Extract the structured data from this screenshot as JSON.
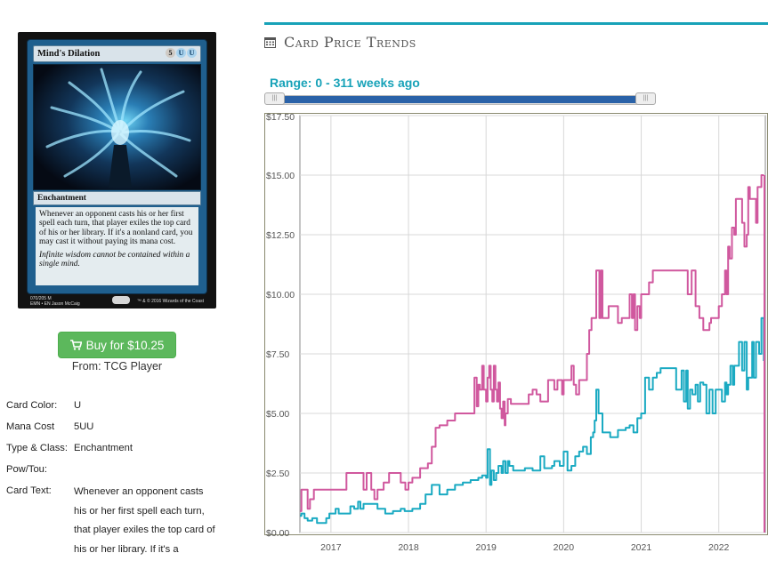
{
  "card": {
    "name": "Mind's Dilation",
    "mana_symbols": [
      "5",
      "U",
      "U"
    ],
    "type_line": "Enchantment",
    "rules_text": "Whenever an opponent casts his or her first spell each turn, that player exiles the top card of his or her library. If it's a nonland card, you may cast it without paying its mana cost.",
    "flavor_text": "Infinite wisdom cannot be contained within a single mind.",
    "collector": "070/205 M",
    "set_line": "EMN • EN",
    "artist": "Jason McCaig",
    "legal": "™ & © 2016 Wizards of the Coast"
  },
  "buy": {
    "label": "Buy for $10.25",
    "icon": "cart-icon",
    "from": "From: TCG Player",
    "color": "#5cb85c"
  },
  "info": {
    "rows": [
      {
        "key": "Card Color:",
        "value": "U"
      },
      {
        "key": "Mana Cost",
        "value": "5UU"
      },
      {
        "key": "Type & Class:",
        "value": "Enchantment"
      },
      {
        "key": "Pow/Tou:",
        "value": ""
      },
      {
        "key": "Card Text:",
        "value": ""
      }
    ],
    "card_text_lines": [
      "Whenever an opponent casts",
      "his or her first spell each turn,",
      "that player exiles the top card of",
      "his or her library. If it's a"
    ]
  },
  "section": {
    "title": "Card Price Trends",
    "icon": "calendar-icon",
    "accent": "#17a2b8"
  },
  "range": {
    "label": "Range: 0 - 311 weeks ago",
    "handle_glyph": "|||"
  },
  "chart_data": {
    "type": "line",
    "title": "",
    "xlabel": "",
    "ylabel": "",
    "ylim": [
      0,
      17.5
    ],
    "xlim": [
      2016.6,
      2022.6
    ],
    "y_ticks": [
      "$0.00",
      "$2.50",
      "$5.00",
      "$7.50",
      "$10.00",
      "$12.50",
      "$15.00",
      "$17.50"
    ],
    "y_tick_values": [
      0,
      2.5,
      5,
      7.5,
      10,
      12.5,
      15,
      17.5
    ],
    "x_ticks": [
      "2017",
      "2018",
      "2019",
      "2020",
      "2021",
      "2022"
    ],
    "x_tick_values": [
      2017,
      2018,
      2019,
      2020,
      2021,
      2022
    ],
    "grid": true,
    "legend": "none",
    "series": [
      {
        "color": "#d0589e",
        "x": [
          2016.6,
          2016.62,
          2016.66,
          2016.7,
          2016.73,
          2016.78,
          2016.85,
          2016.95,
          2017.05,
          2017.15,
          2017.2,
          2017.3,
          2017.38,
          2017.42,
          2017.46,
          2017.52,
          2017.56,
          2017.6,
          2017.68,
          2017.75,
          2017.82,
          2017.9,
          2017.96,
          2018.0,
          2018.05,
          2018.15,
          2018.25,
          2018.3,
          2018.35,
          2018.4,
          2018.5,
          2018.6,
          2018.7,
          2018.8,
          2018.85,
          2018.88,
          2018.9,
          2018.92,
          2018.95,
          2018.97,
          2019.0,
          2019.02,
          2019.04,
          2019.06,
          2019.08,
          2019.1,
          2019.12,
          2019.14,
          2019.16,
          2019.18,
          2019.2,
          2019.22,
          2019.24,
          2019.25,
          2019.28,
          2019.32,
          2019.38,
          2019.45,
          2019.5,
          2019.55,
          2019.6,
          2019.65,
          2019.7,
          2019.75,
          2019.8,
          2019.85,
          2019.88,
          2019.92,
          2019.95,
          2019.98,
          2020.0,
          2020.05,
          2020.1,
          2020.13,
          2020.16,
          2020.2,
          2020.25,
          2020.3,
          2020.33,
          2020.36,
          2020.4,
          2020.42,
          2020.44,
          2020.46,
          2020.48,
          2020.5,
          2020.52,
          2020.55,
          2020.58,
          2020.62,
          2020.66,
          2020.7,
          2020.75,
          2020.8,
          2020.85,
          2020.88,
          2020.9,
          2020.92,
          2020.95,
          2020.98,
          2021.0,
          2021.05,
          2021.1,
          2021.15,
          2021.2,
          2021.25,
          2021.3,
          2021.35,
          2021.4,
          2021.45,
          2021.5,
          2021.55,
          2021.6,
          2021.65,
          2021.7,
          2021.75,
          2021.78,
          2021.8,
          2021.82,
          2021.85,
          2021.88,
          2021.9,
          2021.95,
          2022.0,
          2022.04,
          2022.08,
          2022.1,
          2022.12,
          2022.14,
          2022.17,
          2022.2,
          2022.22,
          2022.26,
          2022.3,
          2022.33,
          2022.36,
          2022.38,
          2022.4,
          2022.45,
          2022.48,
          2022.5,
          2022.52,
          2022.55,
          2022.58
        ],
        "y": [
          0.9,
          1.8,
          1.8,
          1.0,
          1.4,
          1.8,
          1.8,
          1.8,
          1.8,
          1.8,
          2.5,
          2.5,
          2.5,
          1.8,
          2.5,
          1.8,
          1.4,
          1.8,
          2.1,
          2.5,
          2.5,
          2.1,
          1.8,
          2.1,
          2.3,
          2.7,
          2.9,
          3.6,
          4.4,
          4.5,
          4.7,
          5.0,
          5.0,
          5.0,
          6.5,
          5.3,
          6.2,
          6.0,
          7.0,
          6.0,
          5.5,
          6.5,
          7.0,
          6.0,
          5.5,
          7.0,
          6.0,
          5.5,
          6.3,
          5.2,
          4.8,
          5.5,
          4.5,
          5.0,
          5.6,
          5.4,
          5.4,
          5.4,
          5.4,
          5.8,
          6.0,
          5.8,
          5.5,
          5.5,
          6.4,
          6.4,
          6.0,
          6.4,
          6.4,
          5.8,
          6.4,
          6.4,
          7.0,
          6.2,
          5.8,
          6.4,
          6.4,
          7.5,
          8.5,
          9.0,
          9.0,
          11.0,
          11.0,
          9.0,
          11.0,
          9.0,
          9.0,
          9.0,
          9.5,
          9.5,
          9.5,
          8.8,
          9.0,
          9.0,
          10.0,
          9.0,
          10.0,
          8.5,
          9.5,
          9.0,
          10.0,
          10.0,
          10.5,
          11.0,
          11.0,
          11.0,
          11.0,
          11.0,
          11.0,
          11.0,
          11.0,
          11.0,
          10.0,
          11.0,
          9.5,
          9.0,
          9.0,
          8.5,
          8.5,
          8.5,
          8.8,
          9.0,
          9.0,
          9.5,
          10.0,
          11.0,
          10.0,
          12.0,
          11.5,
          12.8,
          12.5,
          14.0,
          14.0,
          13.0,
          12.0,
          12.5,
          14.5,
          14.0,
          14.0,
          13.0,
          14.5,
          14.5,
          15.0,
          15.0
        ]
      },
      {
        "color": "#1aaac2",
        "x": [
          2016.6,
          2016.62,
          2016.66,
          2016.7,
          2016.76,
          2016.82,
          2016.88,
          2016.94,
          2016.98,
          2017.02,
          2017.06,
          2017.1,
          2017.15,
          2017.2,
          2017.25,
          2017.3,
          2017.35,
          2017.38,
          2017.42,
          2017.5,
          2017.6,
          2017.7,
          2017.8,
          2017.9,
          2017.95,
          2018.0,
          2018.05,
          2018.15,
          2018.22,
          2018.3,
          2018.4,
          2018.5,
          2018.6,
          2018.7,
          2018.8,
          2018.9,
          2018.95,
          2019.0,
          2019.02,
          2019.05,
          2019.07,
          2019.1,
          2019.13,
          2019.16,
          2019.2,
          2019.22,
          2019.25,
          2019.28,
          2019.3,
          2019.35,
          2019.4,
          2019.45,
          2019.5,
          2019.55,
          2019.6,
          2019.65,
          2019.7,
          2019.75,
          2019.8,
          2019.85,
          2019.88,
          2019.9,
          2019.95,
          2020.0,
          2020.05,
          2020.1,
          2020.15,
          2020.2,
          2020.25,
          2020.3,
          2020.35,
          2020.38,
          2020.4,
          2020.42,
          2020.45,
          2020.5,
          2020.55,
          2020.6,
          2020.65,
          2020.7,
          2020.75,
          2020.8,
          2020.85,
          2020.9,
          2020.95,
          2021.0,
          2021.05,
          2021.1,
          2021.15,
          2021.2,
          2021.25,
          2021.3,
          2021.35,
          2021.4,
          2021.45,
          2021.5,
          2021.52,
          2021.55,
          2021.58,
          2021.6,
          2021.63,
          2021.66,
          2021.7,
          2021.73,
          2021.76,
          2021.8,
          2021.84,
          2021.88,
          2021.92,
          2021.96,
          2022.0,
          2022.04,
          2022.08,
          2022.1,
          2022.12,
          2022.15,
          2022.18,
          2022.2,
          2022.23,
          2022.26,
          2022.3,
          2022.33,
          2022.36,
          2022.38,
          2022.4,
          2022.43,
          2022.45,
          2022.48,
          2022.5,
          2022.52,
          2022.55,
          2022.58
        ],
        "y": [
          0.7,
          0.8,
          0.6,
          0.5,
          0.6,
          0.4,
          0.4,
          0.6,
          0.8,
          0.8,
          1.0,
          0.8,
          0.8,
          0.8,
          1.1,
          1.0,
          1.3,
          1.0,
          1.2,
          1.2,
          1.0,
          0.8,
          0.9,
          1.0,
          0.9,
          0.9,
          1.0,
          1.2,
          1.6,
          2.0,
          1.6,
          1.8,
          2.0,
          2.1,
          2.2,
          2.3,
          2.4,
          2.3,
          3.5,
          2.0,
          2.6,
          2.2,
          2.5,
          2.8,
          2.5,
          3.0,
          2.5,
          3.0,
          2.8,
          2.6,
          2.6,
          2.6,
          2.7,
          2.7,
          2.6,
          2.6,
          3.2,
          2.7,
          2.7,
          2.8,
          3.0,
          3.0,
          2.8,
          3.4,
          2.6,
          2.8,
          3.2,
          3.4,
          3.6,
          3.3,
          4.0,
          4.2,
          4.7,
          6.0,
          5.0,
          4.2,
          4.2,
          4.0,
          4.0,
          4.3,
          4.3,
          4.4,
          4.5,
          4.2,
          4.8,
          5.0,
          6.5,
          6.0,
          6.5,
          6.7,
          6.9,
          6.9,
          6.9,
          6.9,
          6.0,
          6.0,
          6.8,
          5.5,
          6.8,
          5.2,
          6.0,
          5.8,
          6.2,
          5.5,
          6.3,
          6.2,
          5.0,
          6.0,
          5.0,
          6.0,
          6.0,
          5.5,
          6.3,
          5.8,
          6.2,
          7.0,
          6.2,
          7.0,
          7.0,
          8.0,
          6.8,
          8.0,
          6.0,
          6.5,
          6.5,
          8.0,
          6.5,
          8.0,
          8.0,
          7.5,
          9.0,
          7.2
        ]
      }
    ]
  }
}
